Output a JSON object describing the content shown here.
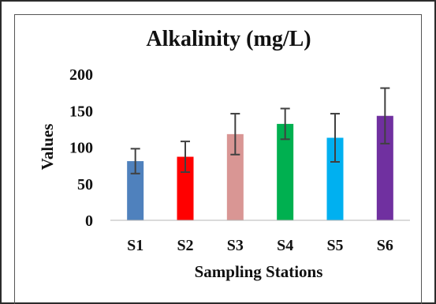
{
  "chart_data": {
    "type": "bar",
    "title": "Alkalinity (mg/L)",
    "xlabel": "Sampling Stations",
    "ylabel": "Values",
    "categories": [
      "S1",
      "S2",
      "S3",
      "S4",
      "S5",
      "S6"
    ],
    "values": [
      81,
      87,
      118,
      132,
      113,
      143
    ],
    "error": [
      17,
      21,
      28,
      21,
      33,
      38
    ],
    "colors": [
      "#4f81bd",
      "#ff0000",
      "#d99694",
      "#00b050",
      "#00b0f0",
      "#7030a0"
    ],
    "yticks": [
      0,
      50,
      100,
      150,
      200
    ],
    "ylim": [
      0,
      200
    ],
    "grid": false
  }
}
